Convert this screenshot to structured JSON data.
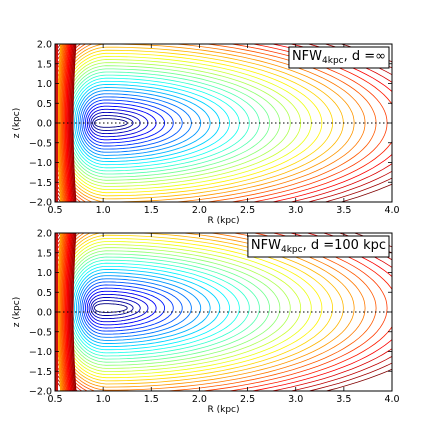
{
  "chart_data": [
    {
      "type": "contour",
      "xlabel": "R (kpc)",
      "ylabel": "z (kpc)",
      "xlim": [
        0.5,
        4.0
      ],
      "ylim": [
        -2.0,
        2.0
      ],
      "xticks": [
        "0.5",
        "1.0",
        "1.5",
        "2.0",
        "2.5",
        "3.0",
        "3.5",
        "4.0"
      ],
      "yticks": [
        "2.0",
        "1.5",
        "1.0",
        "0.5",
        "0.0",
        "−0.5",
        "−1.0",
        "−1.5",
        "−2.0"
      ],
      "legend": {
        "main": "NFW",
        "sub": "4kpc",
        "suffix": ", d =∞",
        "placement": "top-right"
      },
      "center": {
        "R": 1.03,
        "z": 0.0
      },
      "n_levels": 34,
      "reference_line_z": 0.0,
      "colormap": "jet"
    },
    {
      "type": "contour",
      "xlabel": "R (kpc)",
      "ylabel": "z (kpc)",
      "xlim": [
        0.5,
        4.0
      ],
      "ylim": [
        -2.0,
        2.0
      ],
      "xticks": [
        "0.5",
        "1.0",
        "1.5",
        "2.0",
        "2.5",
        "3.0",
        "3.5",
        "4.0"
      ],
      "yticks": [
        "2.0",
        "1.5",
        "1.0",
        "0.5",
        "0.0",
        "−0.5",
        "−1.0",
        "−1.5",
        "−2.0"
      ],
      "legend": {
        "main": "NFW",
        "sub": "4kpc",
        "suffix": ", d =100 kpc",
        "placement": "top-right"
      },
      "center": {
        "R": 1.03,
        "z": 0.1
      },
      "n_levels": 34,
      "reference_line_z": 0.0,
      "colormap": "jet"
    }
  ]
}
